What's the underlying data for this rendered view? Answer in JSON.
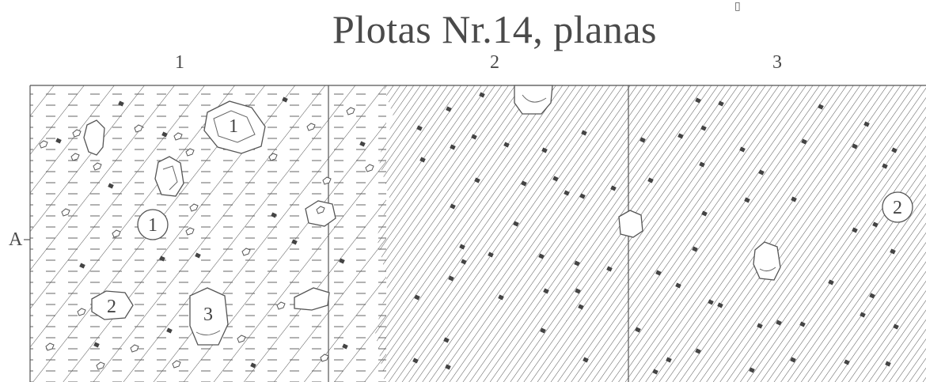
{
  "title": "Plotas Nr.14, planas",
  "corner_glyph": "▯",
  "columns": [
    "1",
    "2",
    "3"
  ],
  "row": "A",
  "stone_labels": [
    "1",
    "1",
    "2",
    "3",
    "2"
  ],
  "colors": {
    "line": "#555555",
    "hatch": "#666666",
    "inclusion": "#444444"
  }
}
